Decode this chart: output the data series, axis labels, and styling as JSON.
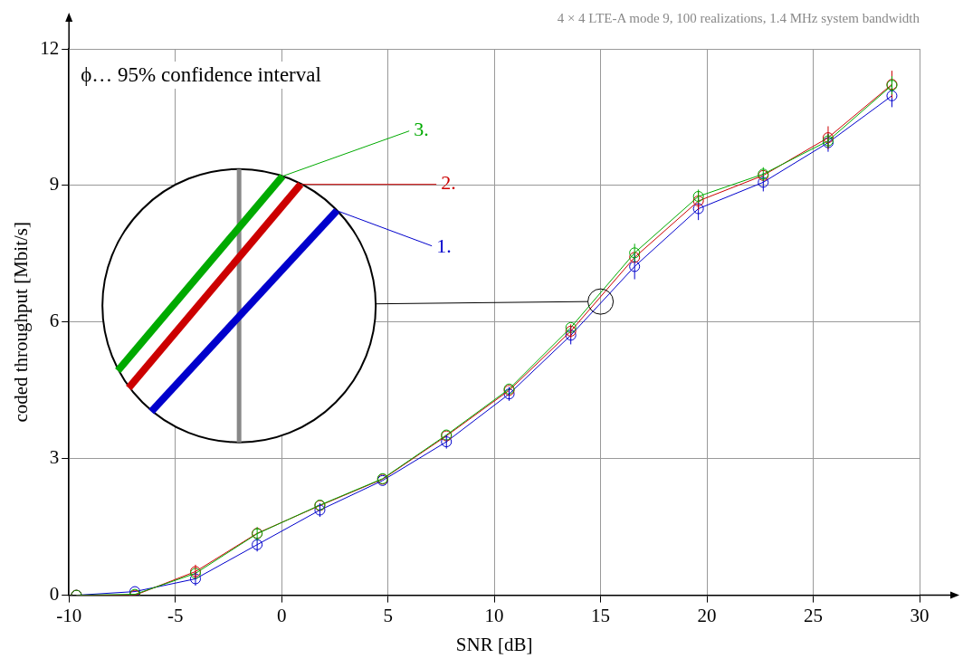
{
  "chart_data": {
    "type": "line",
    "title": "4 × 4 LTE-A mode 9, 100 realizations, 1.4 MHz system bandwidth",
    "xlabel": "SNR [dB]",
    "ylabel": "coded throughput [Mbit/s]",
    "annotations": [
      "ϕ… 95% confidence interval"
    ],
    "x": [
      -9.65,
      -6.9,
      -4.05,
      -1.15,
      1.8,
      4.75,
      7.75,
      10.7,
      13.6,
      16.6,
      19.6,
      22.65,
      25.7,
      28.7
    ],
    "xlim": [
      -10,
      30
    ],
    "xticks": [
      -10,
      -5,
      0,
      5,
      10,
      15,
      20,
      25,
      30
    ],
    "ylim": [
      0,
      12
    ],
    "yticks": [
      0,
      3,
      6,
      9,
      12
    ],
    "grid": true,
    "legend": false,
    "marker": "circle",
    "line_style": "solid",
    "series": [
      {
        "name": "1.",
        "color": "#0000cc",
        "values": [
          0,
          0.08,
          0.36,
          1.11,
          1.87,
          2.52,
          3.37,
          4.42,
          5.71,
          7.22,
          8.49,
          9.07,
          9.94,
          10.97
        ],
        "errors": [
          null,
          null,
          0.15,
          0.15,
          0.15,
          null,
          0.15,
          0.15,
          0.2,
          0.28,
          0.25,
          0.2,
          0.2,
          0.25
        ]
      },
      {
        "name": "2.",
        "color": "#cc0000",
        "values": [
          0,
          0,
          0.52,
          1.36,
          1.97,
          2.55,
          3.5,
          4.5,
          5.8,
          7.42,
          8.66,
          9.22,
          10.05,
          11.22
        ],
        "errors": [
          null,
          null,
          0.15,
          null,
          null,
          null,
          null,
          null,
          0.15,
          null,
          0.2,
          null,
          0.25,
          0.3
        ]
      },
      {
        "name": "3.",
        "color": "#00aa00",
        "values": [
          0,
          0.02,
          0.48,
          1.35,
          1.98,
          2.56,
          3.52,
          4.53,
          5.88,
          7.52,
          8.76,
          9.25,
          9.98,
          11.2
        ],
        "errors": [
          null,
          null,
          null,
          0.15,
          null,
          null,
          null,
          null,
          null,
          0.2,
          0.15,
          0.15,
          0.15,
          0.2
        ]
      }
    ]
  }
}
